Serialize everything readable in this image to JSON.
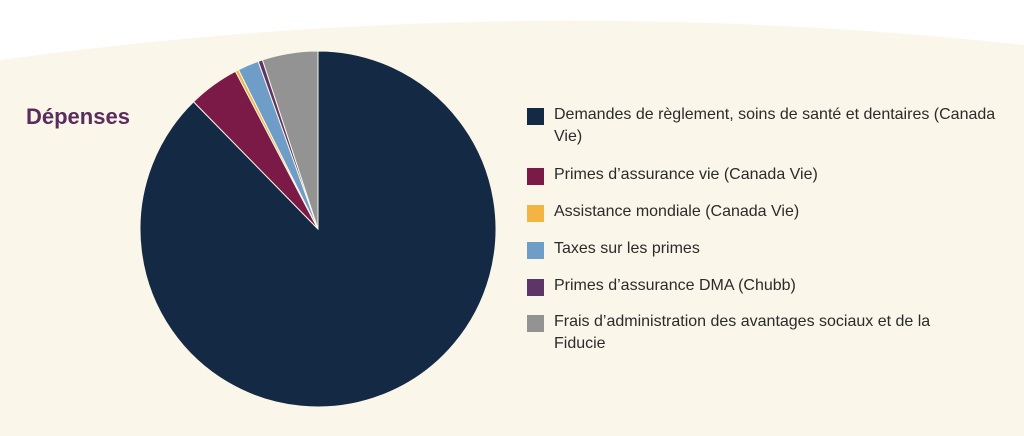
{
  "title": "Dépenses",
  "colors": {
    "background_cream": "#faf6e9",
    "title": "#5b2c5e"
  },
  "chart_data": {
    "type": "pie",
    "title": "Dépenses",
    "start_angle_deg": 0,
    "direction": "clockwise",
    "slices": [
      {
        "label": "Demandes de règlement, soins de santé et dentaires (Canada Vie)",
        "value": 86.8,
        "color": "#142943"
      },
      {
        "label": "Primes d’assurance vie (Canada Vie)",
        "value": 4.6,
        "color": "#7b1947"
      },
      {
        "label": "Assistance mondiale (Canada Vie)",
        "value": 0.3,
        "color": "#f2b544"
      },
      {
        "label": "Taxes sur les primes",
        "value": 1.9,
        "color": "#6e9ec8"
      },
      {
        "label": "Primes d’assurance DMA (Chubb)",
        "value": 0.4,
        "color": "#5d3566"
      },
      {
        "label": "Frais d’administration des avantages sociaux et de la Fiducie",
        "value": 5.0,
        "color": "#939393"
      }
    ],
    "legend": "right"
  }
}
